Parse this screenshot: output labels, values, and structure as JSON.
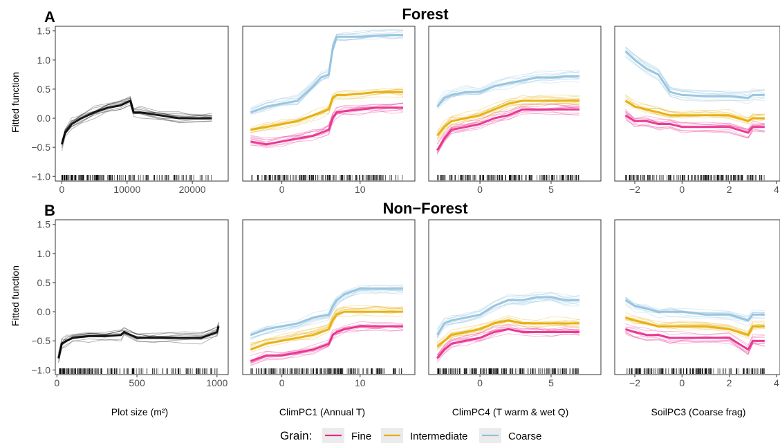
{
  "figure": {
    "legend": {
      "title": "Grain:",
      "placement": "bottom"
    },
    "colors": {
      "Fine": "#e7298a",
      "Intermediate": "#e6ab02",
      "Coarse": "#8fc1de",
      "Single": "#000000"
    },
    "ylabel": "Fitted function",
    "ylim": [
      -1.08,
      1.58
    ],
    "yticks": [
      -1.0,
      -0.5,
      0.0,
      0.5,
      1.0,
      1.5
    ],
    "ytick_labels": [
      "−1.0",
      "−0.5",
      "0.0",
      "0.5",
      "1.0",
      "1.5"
    ],
    "columns": [
      {
        "xlabel": "Plot size (m²)",
        "xlim_row0": [
          -1000,
          25500
        ],
        "xlim_row1": [
          -10,
          1070
        ]
      },
      {
        "xlabel": "ClimPC1 (Annual T)",
        "xlim": [
          -5,
          17
        ]
      },
      {
        "xlabel": "ClimPC4 (T warm & wet Q)",
        "xlim": [
          -3.6,
          8.5
        ]
      },
      {
        "xlabel": "SoilPC3 (Coarse frag)",
        "xlim": [
          -2.85,
          4.15
        ]
      }
    ],
    "rows": [
      {
        "tag": "A",
        "title": "Forest"
      },
      {
        "tag": "B",
        "title": "Non−Forest"
      }
    ]
  },
  "chart_data": [
    {
      "type": "line",
      "row": "Forest",
      "xlabel": "",
      "ylabel": "Fitted function",
      "xticks": [
        0,
        10000,
        20000
      ],
      "xtick_labels": [
        "0",
        "10000",
        "20000"
      ],
      "series": [
        {
          "x": [
            0,
            500,
            1500,
            3000,
            5000,
            7000,
            9000,
            10500,
            11000,
            12000,
            15000,
            18000,
            20000,
            23000
          ],
          "y": [
            -0.45,
            -0.25,
            -0.1,
            0.0,
            0.1,
            0.18,
            0.22,
            0.3,
            0.1,
            0.1,
            0.05,
            0.0,
            0.0,
            0.0
          ]
        }
      ]
    },
    {
      "type": "line",
      "row": "Forest",
      "xlabel": "",
      "ylabel": "",
      "xticks": [
        0,
        10
      ],
      "xtick_labels": [
        "0",
        "10"
      ],
      "series": [
        {
          "name": "Coarse",
          "x": [
            -4,
            -2,
            0,
            2,
            4,
            5,
            6,
            6.5,
            7,
            8,
            10,
            12,
            14,
            15.5
          ],
          "y": [
            0.1,
            0.2,
            0.25,
            0.3,
            0.55,
            0.7,
            0.75,
            1.2,
            1.4,
            1.4,
            1.4,
            1.42,
            1.43,
            1.43
          ]
        },
        {
          "name": "Intermediate",
          "x": [
            -4,
            -2,
            0,
            2,
            4,
            5,
            6,
            6.5,
            7,
            8,
            10,
            12,
            14,
            15.5
          ],
          "y": [
            -0.2,
            -0.15,
            -0.1,
            -0.05,
            0.05,
            0.1,
            0.15,
            0.35,
            0.4,
            0.4,
            0.42,
            0.45,
            0.45,
            0.45
          ]
        },
        {
          "name": "Fine",
          "x": [
            -4,
            -2,
            0,
            2,
            4,
            5,
            6,
            6.5,
            7,
            8,
            10,
            12,
            14,
            15.5
          ],
          "y": [
            -0.4,
            -0.45,
            -0.4,
            -0.35,
            -0.3,
            -0.25,
            -0.2,
            0.0,
            0.1,
            0.12,
            0.15,
            0.18,
            0.18,
            0.18
          ]
        }
      ]
    },
    {
      "type": "line",
      "row": "Forest",
      "xlabel": "",
      "ylabel": "",
      "xticks": [
        0,
        5
      ],
      "xtick_labels": [
        "0",
        "5"
      ],
      "series": [
        {
          "name": "Coarse",
          "x": [
            -3,
            -2.5,
            -2,
            -1,
            0,
            1,
            2,
            3,
            4,
            5,
            6,
            7
          ],
          "y": [
            0.2,
            0.35,
            0.4,
            0.45,
            0.45,
            0.55,
            0.6,
            0.65,
            0.7,
            0.7,
            0.72,
            0.72
          ]
        },
        {
          "name": "Intermediate",
          "x": [
            -3,
            -2.5,
            -2,
            -1,
            0,
            1,
            2,
            3,
            4,
            5,
            6,
            7
          ],
          "y": [
            -0.3,
            -0.15,
            -0.05,
            0.0,
            0.05,
            0.15,
            0.25,
            0.3,
            0.3,
            0.3,
            0.3,
            0.3
          ]
        },
        {
          "name": "Fine",
          "x": [
            -3,
            -2.5,
            -2,
            -1,
            0,
            1,
            2,
            3,
            4,
            5,
            6,
            7
          ],
          "y": [
            -0.55,
            -0.35,
            -0.2,
            -0.15,
            -0.1,
            0.0,
            0.05,
            0.15,
            0.15,
            0.15,
            0.15,
            0.15
          ]
        }
      ]
    },
    {
      "type": "line",
      "row": "Forest",
      "xlabel": "",
      "ylabel": "",
      "xticks": [
        -2,
        0,
        2,
        4
      ],
      "xtick_labels": [
        "−2",
        "0",
        "2",
        "4"
      ],
      "series": [
        {
          "name": "Coarse",
          "x": [
            -2.4,
            -2,
            -1.5,
            -1,
            -0.5,
            0,
            1,
            2,
            2.8,
            3,
            3.5
          ],
          "y": [
            1.15,
            1.0,
            0.85,
            0.75,
            0.45,
            0.4,
            0.38,
            0.38,
            0.35,
            0.4,
            0.4
          ]
        },
        {
          "name": "Intermediate",
          "x": [
            -2.4,
            -2,
            -1.5,
            -1,
            -0.5,
            0,
            1,
            2,
            2.8,
            3,
            3.5
          ],
          "y": [
            0.3,
            0.2,
            0.15,
            0.1,
            0.05,
            0.05,
            0.05,
            0.05,
            -0.05,
            0.0,
            0.0
          ]
        },
        {
          "name": "Fine",
          "x": [
            -2.4,
            -2,
            -1.5,
            -1,
            -0.5,
            0,
            1,
            2,
            2.8,
            3,
            3.5
          ],
          "y": [
            0.05,
            -0.05,
            -0.05,
            -0.1,
            -0.1,
            -0.15,
            -0.15,
            -0.15,
            -0.25,
            -0.15,
            -0.15
          ]
        }
      ]
    },
    {
      "type": "line",
      "row": "Non−Forest",
      "xlabel": "Plot size (m²)",
      "ylabel": "Fitted function",
      "xticks": [
        0,
        500,
        1000
      ],
      "xtick_labels": [
        "0",
        "500",
        "1000"
      ],
      "series": [
        {
          "x": [
            10,
            30,
            60,
            100,
            200,
            300,
            400,
            420,
            500,
            600,
            700,
            800,
            900,
            1000,
            1010
          ],
          "y": [
            -0.8,
            -0.55,
            -0.5,
            -0.45,
            -0.42,
            -0.42,
            -0.4,
            -0.35,
            -0.45,
            -0.45,
            -0.45,
            -0.45,
            -0.45,
            -0.35,
            -0.25
          ]
        }
      ]
    },
    {
      "type": "line",
      "row": "Non−Forest",
      "xlabel": "ClimPC1 (Annual T)",
      "ylabel": "",
      "xticks": [
        0,
        10
      ],
      "xtick_labels": [
        "0",
        "10"
      ],
      "series": [
        {
          "name": "Coarse",
          "x": [
            -4,
            -2,
            0,
            2,
            4,
            6,
            6.5,
            7,
            8,
            10,
            12,
            14,
            15.5
          ],
          "y": [
            -0.4,
            -0.3,
            -0.25,
            -0.2,
            -0.1,
            -0.05,
            0.1,
            0.2,
            0.3,
            0.4,
            0.4,
            0.4,
            0.4
          ]
        },
        {
          "name": "Intermediate",
          "x": [
            -4,
            -2,
            0,
            2,
            4,
            6,
            6.5,
            7,
            8,
            10,
            12,
            14,
            15.5
          ],
          "y": [
            -0.65,
            -0.55,
            -0.5,
            -0.45,
            -0.4,
            -0.3,
            -0.15,
            -0.05,
            0.0,
            0.0,
            0.0,
            0.0,
            0.0
          ]
        },
        {
          "name": "Fine",
          "x": [
            -4,
            -2,
            0,
            2,
            4,
            6,
            6.5,
            7,
            8,
            10,
            12,
            14,
            15.5
          ],
          "y": [
            -0.85,
            -0.75,
            -0.75,
            -0.7,
            -0.65,
            -0.55,
            -0.4,
            -0.35,
            -0.3,
            -0.25,
            -0.25,
            -0.25,
            -0.25
          ]
        }
      ]
    },
    {
      "type": "line",
      "row": "Non−Forest",
      "xlabel": "ClimPC4 (T warm & wet Q)",
      "ylabel": "",
      "xticks": [
        0,
        5
      ],
      "xtick_labels": [
        "0",
        "5"
      ],
      "series": [
        {
          "name": "Coarse",
          "x": [
            -3,
            -2.5,
            -2,
            -1,
            0,
            1,
            2,
            3,
            4,
            5,
            6,
            7
          ],
          "y": [
            -0.4,
            -0.2,
            -0.15,
            -0.1,
            -0.05,
            0.1,
            0.2,
            0.2,
            0.25,
            0.25,
            0.2,
            0.2
          ]
        },
        {
          "name": "Intermediate",
          "x": [
            -3,
            -2.5,
            -2,
            -1,
            0,
            1,
            2,
            3,
            4,
            5,
            6,
            7
          ],
          "y": [
            -0.6,
            -0.5,
            -0.4,
            -0.35,
            -0.3,
            -0.2,
            -0.15,
            -0.2,
            -0.2,
            -0.2,
            -0.2,
            -0.2
          ]
        },
        {
          "name": "Fine",
          "x": [
            -3,
            -2.5,
            -2,
            -1,
            0,
            1,
            2,
            3,
            4,
            5,
            6,
            7
          ],
          "y": [
            -0.8,
            -0.65,
            -0.55,
            -0.5,
            -0.45,
            -0.35,
            -0.3,
            -0.35,
            -0.35,
            -0.35,
            -0.35,
            -0.35
          ]
        }
      ]
    },
    {
      "type": "line",
      "row": "Non−Forest",
      "xlabel": "SoilPC3 (Coarse frag)",
      "ylabel": "",
      "xticks": [
        -2,
        0,
        2,
        4
      ],
      "xtick_labels": [
        "−2",
        "0",
        "2",
        "4"
      ],
      "series": [
        {
          "name": "Coarse",
          "x": [
            -2.4,
            -2,
            -1.5,
            -1,
            -0.5,
            0,
            1,
            2,
            2.8,
            3,
            3.5
          ],
          "y": [
            0.2,
            0.1,
            0.05,
            0.0,
            0.0,
            0.0,
            -0.05,
            -0.05,
            -0.15,
            -0.05,
            -0.05
          ]
        },
        {
          "name": "Intermediate",
          "x": [
            -2.4,
            -2,
            -1.5,
            -1,
            -0.5,
            0,
            1,
            2,
            2.8,
            3,
            3.5
          ],
          "y": [
            -0.1,
            -0.15,
            -0.2,
            -0.25,
            -0.25,
            -0.25,
            -0.25,
            -0.3,
            -0.4,
            -0.25,
            -0.25
          ]
        },
        {
          "name": "Fine",
          "x": [
            -2.4,
            -2,
            -1.5,
            -1,
            -0.5,
            0,
            1,
            2,
            2.8,
            3,
            3.5
          ],
          "y": [
            -0.3,
            -0.35,
            -0.4,
            -0.4,
            -0.45,
            -0.45,
            -0.45,
            -0.45,
            -0.65,
            -0.5,
            -0.5
          ]
        }
      ]
    }
  ]
}
